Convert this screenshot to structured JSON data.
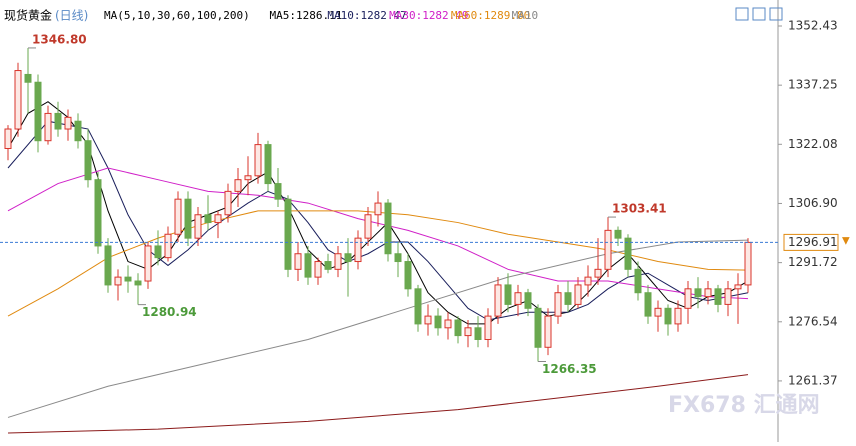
{
  "chart_data": {
    "type": "candlestick",
    "title": "现货黄金",
    "subtitle": "(日线)",
    "legend": [
      {
        "label": "MA(5,10,30,60,100,200)",
        "color": "#000000"
      },
      {
        "label": "MA5:1286.11",
        "color": "#000000"
      },
      {
        "label": "MA10:1282.47",
        "color": "#1a1f5c"
      },
      {
        "label": "MA30:1282.49",
        "color": "#d020c8"
      },
      {
        "label": "MA60:1289.80",
        "color": "#e08a10"
      },
      {
        "label": "MA10",
        "color": "#888888"
      }
    ],
    "ylim": [
      1245.7,
      1359.1
    ],
    "yticks": [
      1352.43,
      1337.25,
      1322.08,
      {
        "value": 1306.9,
        "label": "1306.90"
      },
      1291.72,
      1276.54,
      1261.37
    ],
    "last_price": 1296.91,
    "up_color": "#d9342b",
    "down_color": "#6aa84f",
    "candles": [
      [
        1321,
        1327,
        1318,
        1326
      ],
      [
        1326,
        1343,
        1324,
        1341
      ],
      [
        1340,
        1346.8,
        1330,
        1338
      ],
      [
        1338,
        1340,
        1320,
        1323
      ],
      [
        1323,
        1332,
        1322,
        1330
      ],
      [
        1330,
        1333,
        1324,
        1326
      ],
      [
        1326,
        1331,
        1323,
        1329
      ],
      [
        1328,
        1330,
        1321,
        1323
      ],
      [
        1323,
        1326,
        1311,
        1313
      ],
      [
        1313,
        1315,
        1294,
        1296
      ],
      [
        1296,
        1298,
        1284,
        1286
      ],
      [
        1286,
        1290,
        1282,
        1288
      ],
      [
        1288,
        1291,
        1284,
        1287
      ],
      [
        1287,
        1289,
        1280.94,
        1286
      ],
      [
        1287,
        1297,
        1285,
        1296
      ],
      [
        1296,
        1300,
        1291,
        1293
      ],
      [
        1293,
        1301,
        1292,
        1299
      ],
      [
        1299,
        1310,
        1297,
        1308
      ],
      [
        1308,
        1310,
        1296,
        1298
      ],
      [
        1298,
        1306,
        1296,
        1304
      ],
      [
        1304,
        1309,
        1300,
        1302
      ],
      [
        1302,
        1305,
        1298,
        1304
      ],
      [
        1304,
        1312,
        1302,
        1310
      ],
      [
        1310,
        1316,
        1306,
        1313
      ],
      [
        1313,
        1319,
        1309,
        1314
      ],
      [
        1314,
        1325,
        1312,
        1322
      ],
      [
        1322,
        1323,
        1310,
        1312
      ],
      [
        1312,
        1316,
        1306,
        1308
      ],
      [
        1308,
        1309,
        1288,
        1290
      ],
      [
        1290,
        1297,
        1287,
        1294
      ],
      [
        1294,
        1296,
        1286,
        1288
      ],
      [
        1288,
        1293,
        1286,
        1292
      ],
      [
        1292,
        1294,
        1289,
        1290
      ],
      [
        1290,
        1296,
        1288,
        1294
      ],
      [
        1294,
        1298,
        1283,
        1292
      ],
      [
        1292,
        1300,
        1290,
        1298
      ],
      [
        1298,
        1306,
        1296,
        1304
      ],
      [
        1304,
        1310,
        1301,
        1307
      ],
      [
        1307,
        1308,
        1292,
        1294
      ],
      [
        1294,
        1297,
        1288,
        1292
      ],
      [
        1292,
        1294,
        1283,
        1285
      ],
      [
        1285,
        1286,
        1274,
        1276
      ],
      [
        1276,
        1281,
        1273,
        1278
      ],
      [
        1278,
        1280,
        1273,
        1275
      ],
      [
        1275,
        1279,
        1272,
        1277
      ],
      [
        1277,
        1278,
        1271,
        1273
      ],
      [
        1273,
        1277,
        1270,
        1275
      ],
      [
        1275,
        1278,
        1270,
        1272
      ],
      [
        1272,
        1280,
        1270,
        1278
      ],
      [
        1278,
        1288,
        1276,
        1286
      ],
      [
        1286,
        1289,
        1279,
        1281
      ],
      [
        1281,
        1286,
        1278,
        1284
      ],
      [
        1284,
        1285,
        1278,
        1280
      ],
      [
        1280,
        1281,
        1266.35,
        1270
      ],
      [
        1270,
        1280,
        1268,
        1278
      ],
      [
        1278,
        1286,
        1276,
        1284
      ],
      [
        1284,
        1287,
        1279,
        1281
      ],
      [
        1281,
        1288,
        1280,
        1286
      ],
      [
        1286,
        1291,
        1283,
        1288
      ],
      [
        1288,
        1298,
        1286,
        1290
      ],
      [
        1290,
        1303.41,
        1288,
        1300
      ],
      [
        1300,
        1301,
        1296,
        1298
      ],
      [
        1298,
        1299,
        1288,
        1290
      ],
      [
        1290,
        1292,
        1282,
        1284
      ],
      [
        1284,
        1286,
        1276,
        1278
      ],
      [
        1278,
        1282,
        1274,
        1280
      ],
      [
        1280,
        1281,
        1273,
        1276
      ],
      [
        1276,
        1282,
        1274,
        1280
      ],
      [
        1280,
        1287,
        1276,
        1285
      ],
      [
        1285,
        1288,
        1280,
        1283
      ],
      [
        1283,
        1287,
        1281,
        1285
      ],
      [
        1285,
        1286,
        1279,
        1281
      ],
      [
        1281,
        1287,
        1278,
        1285
      ],
      [
        1285,
        1289,
        1276,
        1286
      ],
      [
        1286,
        1298,
        1284,
        1296.91
      ]
    ],
    "lines": [
      {
        "color": "#000000",
        "x": [
          0,
          2,
          4,
          6,
          8,
          10,
          12,
          14,
          16,
          18,
          20,
          22,
          24,
          26,
          28,
          30,
          32,
          34,
          36,
          38,
          40,
          42,
          44,
          46,
          48,
          50,
          52,
          54,
          56,
          58,
          60,
          62,
          64,
          66,
          68,
          70,
          72,
          74
        ],
        "values": [
          1321,
          1330,
          1333,
          1329,
          1322,
          1305,
          1292,
          1290,
          1294,
          1302,
          1304,
          1306,
          1312,
          1315,
          1306,
          1295,
          1290,
          1292,
          1297,
          1302,
          1294,
          1284,
          1279,
          1276,
          1276,
          1280,
          1282,
          1278,
          1279,
          1284,
          1290,
          1294,
          1288,
          1282,
          1280,
          1283,
          1284,
          1287
        ]
      },
      {
        "color": "#1a1f5c",
        "x": [
          0,
          4,
          8,
          10,
          12,
          14,
          16,
          18,
          20,
          24,
          26,
          28,
          30,
          32,
          34,
          36,
          38,
          40,
          42,
          44,
          46,
          48,
          50,
          52,
          54,
          56,
          58,
          60,
          62,
          64,
          66,
          68,
          70,
          72,
          74
        ],
        "values": [
          1316,
          1328,
          1326,
          1316,
          1304,
          1295,
          1291,
          1295,
          1300,
          1307,
          1310,
          1308,
          1302,
          1295,
          1292,
          1294,
          1297,
          1297,
          1292,
          1286,
          1280,
          1277,
          1278,
          1279,
          1279,
          1279,
          1281,
          1285,
          1288,
          1289,
          1286,
          1283,
          1282,
          1283,
          1284
        ]
      },
      {
        "color": "#d020c8",
        "x": [
          0,
          5,
          10,
          15,
          20,
          25,
          30,
          35,
          40,
          45,
          50,
          55,
          60,
          65,
          70,
          74
        ],
        "values": [
          1305,
          1312,
          1316,
          1313,
          1310,
          1309,
          1307,
          1303,
          1300,
          1296,
          1290,
          1287,
          1287,
          1285,
          1283,
          1282.5
        ]
      },
      {
        "color": "#e08a10",
        "x": [
          0,
          5,
          10,
          15,
          20,
          25,
          30,
          35,
          40,
          45,
          50,
          55,
          60,
          65,
          70,
          74
        ],
        "values": [
          1278,
          1285,
          1293,
          1298,
          1302,
          1305,
          1305,
          1305,
          1304,
          1302,
          1299,
          1297,
          1295,
          1292,
          1290,
          1289.8
        ]
      },
      {
        "color": "#8a8a8a",
        "x": [
          0,
          10,
          20,
          30,
          40,
          50,
          60,
          67,
          74
        ],
        "values": [
          1252,
          1260,
          1266,
          1272,
          1280,
          1288,
          1294,
          1297,
          1297.5
        ]
      },
      {
        "color": "#8b1a1a",
        "x": [
          0,
          15,
          30,
          45,
          55,
          65,
          74
        ],
        "values": [
          1248,
          1249,
          1251,
          1254,
          1257,
          1260,
          1263
        ]
      }
    ],
    "annotations": [
      {
        "value": 1346.8,
        "label": "1346.80",
        "color": "#c0392b"
      },
      {
        "value": 1280.94,
        "label": "1280.94",
        "color": "#4c9a3a"
      },
      {
        "value": 1303.41,
        "label": "1303.41",
        "color": "#c0392b"
      },
      {
        "value": 1266.35,
        "label": "1266.35",
        "color": "#4c9a3a"
      }
    ],
    "watermark": "FX678 汇通网"
  }
}
